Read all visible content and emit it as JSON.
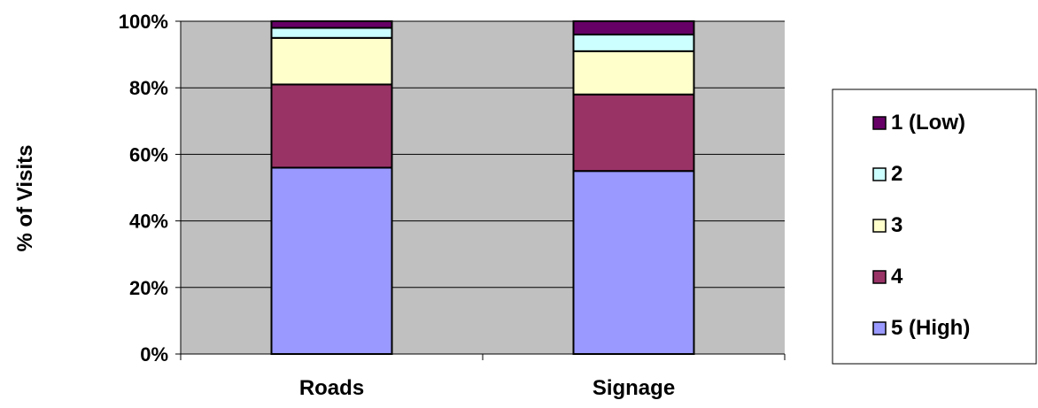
{
  "chart_data": {
    "type": "bar",
    "stacked": true,
    "percent": true,
    "categories": [
      "Roads",
      "Signage"
    ],
    "ylabel": "% of Visits",
    "ylim": [
      0,
      100
    ],
    "yticks": [
      "0%",
      "20%",
      "40%",
      "60%",
      "80%",
      "100%"
    ],
    "grid": true,
    "legend_position": "right",
    "series": [
      {
        "name": "5 (High)",
        "color": "#9999ff",
        "values": [
          56,
          55
        ]
      },
      {
        "name": "4",
        "color": "#993366",
        "values": [
          25,
          23
        ]
      },
      {
        "name": "3",
        "color": "#ffffcc",
        "values": [
          14,
          13
        ]
      },
      {
        "name": "2",
        "color": "#ccffff",
        "values": [
          3,
          5
        ]
      },
      {
        "name": "1 (Low)",
        "color": "#660066",
        "values": [
          2,
          4
        ]
      }
    ],
    "plot_background": "#c0c0c0"
  }
}
